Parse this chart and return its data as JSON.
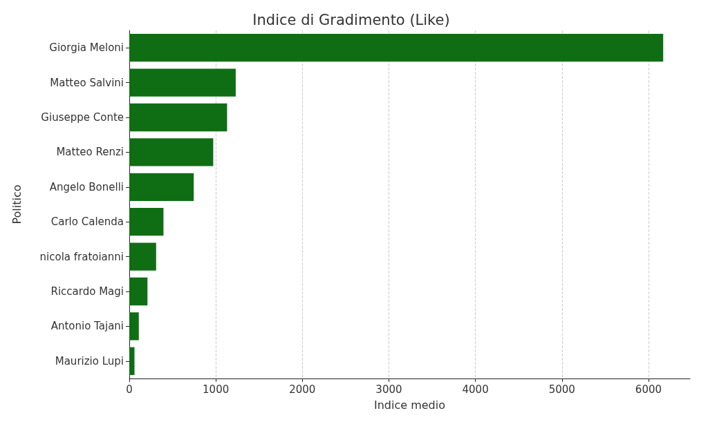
{
  "chart_data": {
    "type": "bar",
    "orientation": "horizontal",
    "title": "Indice di Gradimento (Like)",
    "xlabel": "Indice medio",
    "ylabel": "Politico",
    "categories": [
      "Giorgia Meloni",
      "Matteo Salvini",
      "Giuseppe Conte",
      "Matteo Renzi",
      "Angelo Bonelli",
      "Carlo Calenda",
      "nicola fratoianni",
      "Riccardo Magi",
      "Antonio Tajani",
      "Maurizio Lupi"
    ],
    "values": [
      6170,
      1230,
      1130,
      970,
      745,
      395,
      310,
      210,
      110,
      60
    ],
    "color": "#0f6e14",
    "xlim": [
      0,
      6480
    ],
    "xticks": [
      0,
      1000,
      2000,
      3000,
      4000,
      5000,
      6000
    ],
    "grid": "x"
  }
}
